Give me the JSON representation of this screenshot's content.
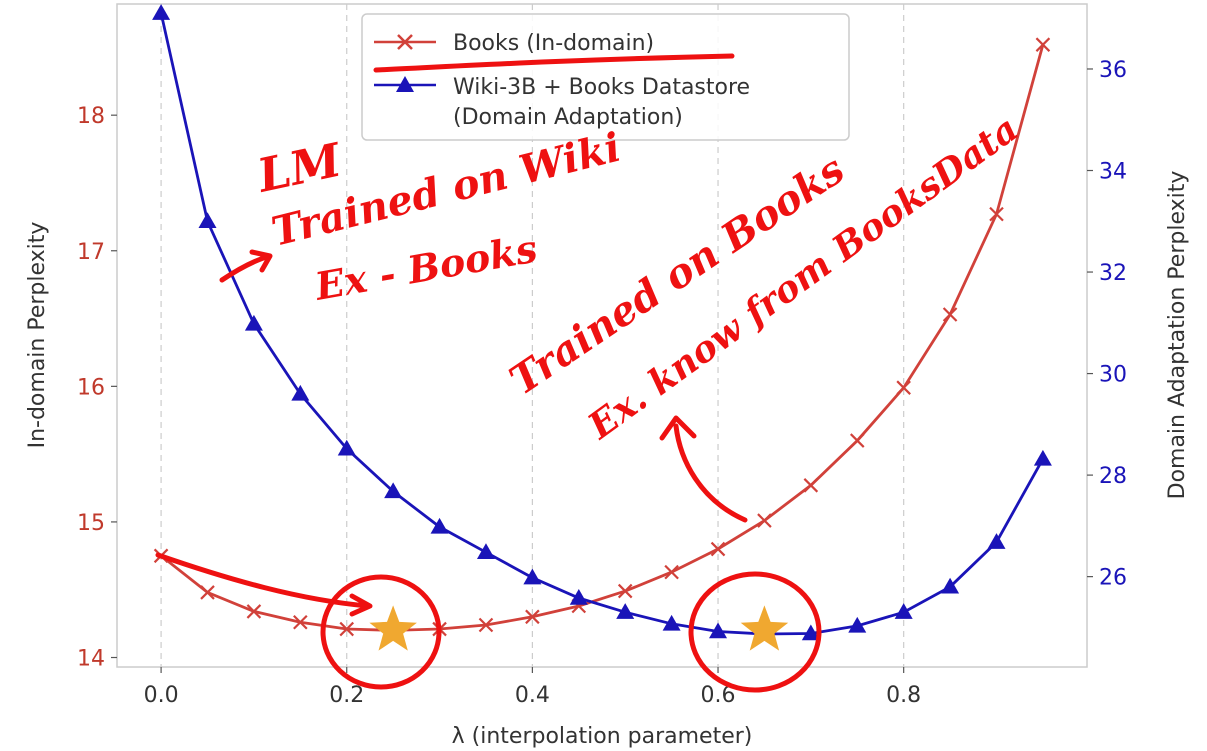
{
  "chart_data": {
    "type": "line",
    "xlabel": "λ (interpolation parameter)",
    "ylabel_left": "In-domain Perplexity",
    "ylabel_right": "Domain Adaptation Perplexity",
    "xlim": [
      -0.0475,
      0.9975
    ],
    "ylim_left": [
      13.93,
      18.82
    ],
    "ylim_right": [
      24.22,
      37.28
    ],
    "x_ticks": [
      0.0,
      0.2,
      0.4,
      0.6,
      0.8
    ],
    "x_tick_labels": [
      "0.0",
      "0.2",
      "0.4",
      "0.6",
      "0.8"
    ],
    "y_left_ticks": [
      14,
      15,
      16,
      17,
      18
    ],
    "y_left_tick_labels": [
      "14",
      "15",
      "16",
      "17",
      "18"
    ],
    "y_right_ticks": [
      26,
      28,
      30,
      32,
      34,
      36
    ],
    "y_right_tick_labels": [
      "26",
      "28",
      "30",
      "32",
      "34",
      "36"
    ],
    "grid": "vertical dashed at x ticks",
    "legend_placement": "top-center",
    "x": [
      0.0,
      0.05,
      0.1,
      0.15,
      0.2,
      0.25,
      0.3,
      0.35,
      0.4,
      0.45,
      0.5,
      0.55,
      0.6,
      0.65,
      0.7,
      0.75,
      0.8,
      0.85,
      0.9,
      0.95
    ],
    "series": [
      {
        "name": "Books (In-domain)",
        "axis": "left",
        "marker": "x",
        "color": "#d1413a",
        "values": [
          14.75,
          14.48,
          14.34,
          14.26,
          14.21,
          14.2,
          14.21,
          14.24,
          14.3,
          14.38,
          14.49,
          14.63,
          14.8,
          15.01,
          15.27,
          15.6,
          15.99,
          16.53,
          17.27,
          18.52
        ]
      },
      {
        "name": "Wiki-3B + Books Datastore\n(Domain Adaptation)",
        "axis": "right",
        "marker": "triangle",
        "color": "#1a14b8",
        "values": [
          37.1,
          33.0,
          30.98,
          29.6,
          28.52,
          27.68,
          26.98,
          26.48,
          25.98,
          25.58,
          25.3,
          25.07,
          24.92,
          24.87,
          24.88,
          25.03,
          25.3,
          25.8,
          26.68,
          28.32
        ]
      }
    ],
    "stars": [
      {
        "x": 0.25,
        "y_left": 14.2,
        "color": "#f0a830"
      },
      {
        "x": 0.65,
        "y_left": 14.2,
        "color": "#f0a830"
      }
    ],
    "annotations": [
      {
        "text": "LM"
      },
      {
        "text": "Trained on Wiki"
      },
      {
        "text": "Ex - Books"
      },
      {
        "text": "Trained on Books"
      },
      {
        "text": "Ex. know from BooksData"
      }
    ]
  }
}
